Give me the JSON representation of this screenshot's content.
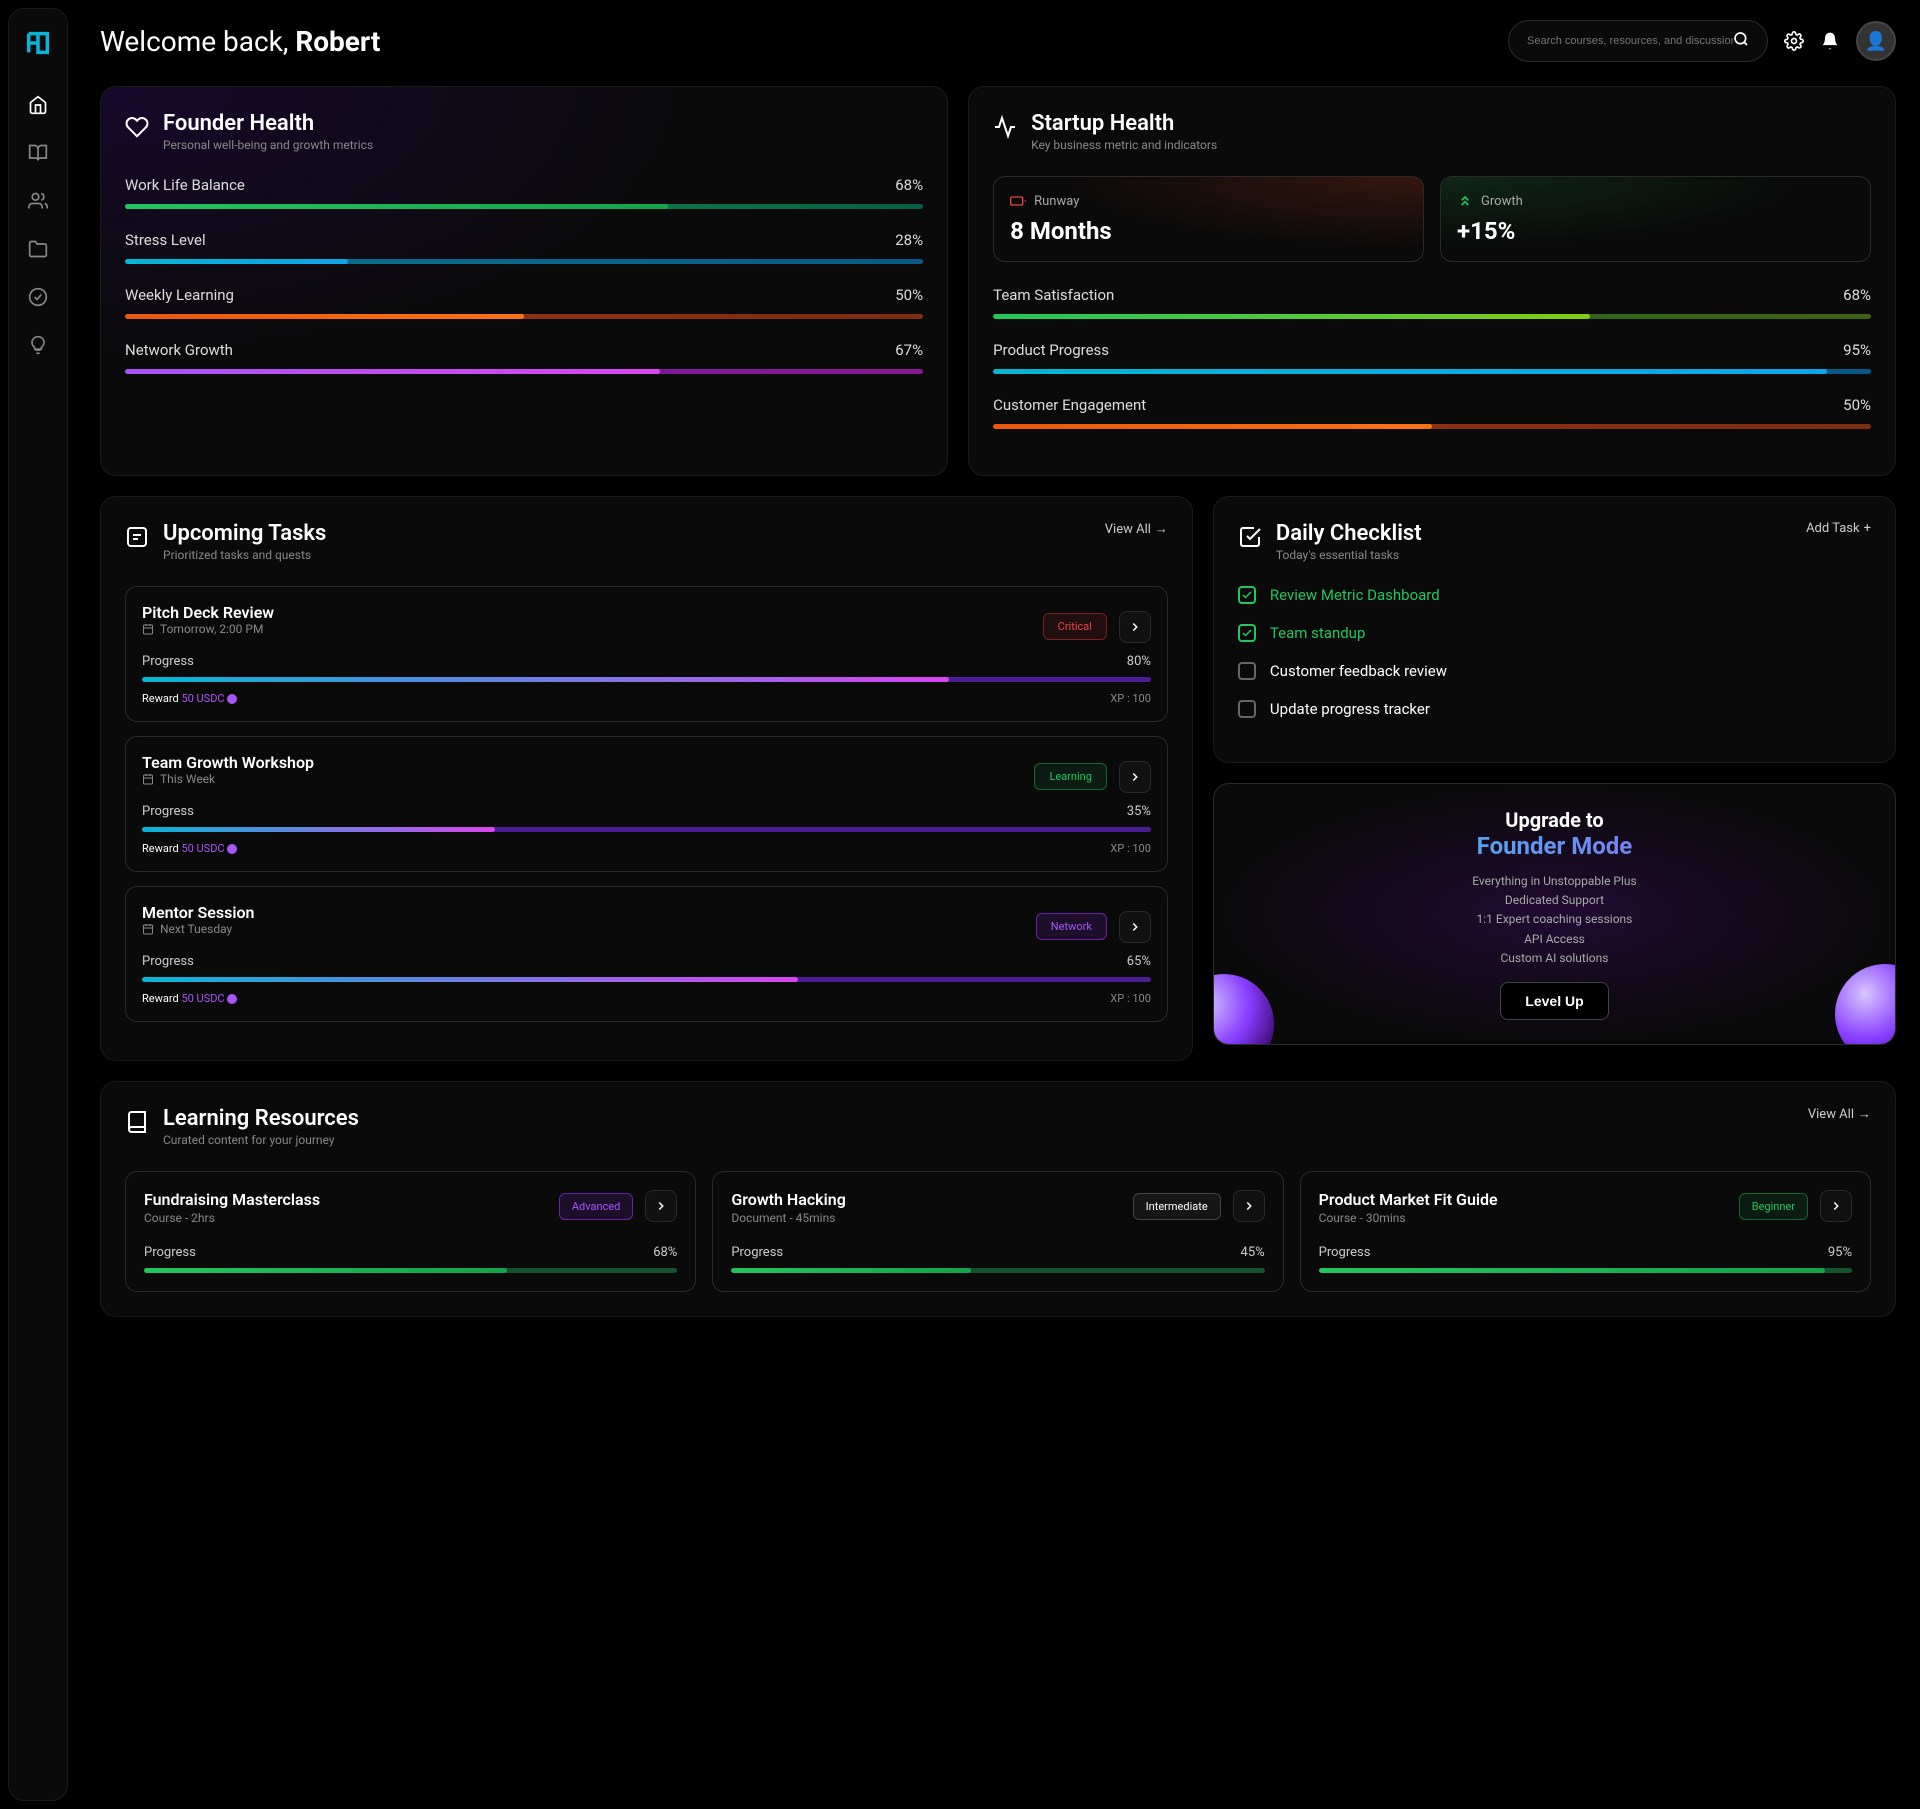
{
  "header": {
    "welcome_prefix": "Welcome back, ",
    "user_name": "Robert",
    "search_placeholder": "Search courses, resources, and discussions..."
  },
  "founder_health": {
    "title": "Founder Health",
    "subtitle": "Personal well-being and growth metrics",
    "metrics": [
      {
        "label": "Work Life Balance",
        "value": "68%",
        "pct": 68,
        "gradient": "linear-gradient(90deg, #22c55e 0%, #16a34a 100%)",
        "track_gradient": "linear-gradient(90deg, #16a34a 0%, #065f46 100%)"
      },
      {
        "label": "Stress Level",
        "value": "28%",
        "pct": 28,
        "gradient": "linear-gradient(90deg, #06b6d4 0%, #0ea5e9 100%)",
        "track_gradient": "linear-gradient(90deg, #0e7490 0%, #075985 100%)"
      },
      {
        "label": "Weekly Learning",
        "value": "50%",
        "pct": 50,
        "gradient": "linear-gradient(90deg, #ea580c 0%, #f97316 100%)",
        "track_gradient": "linear-gradient(90deg, #9a3412 0%, #7c2d12 100%)"
      },
      {
        "label": "Network Growth",
        "value": "67%",
        "pct": 67,
        "gradient": "linear-gradient(90deg, #a855f7 0%, #d946ef 100%)",
        "track_gradient": "linear-gradient(90deg, #6b21a8 0%, #86198f 100%)"
      }
    ]
  },
  "startup_health": {
    "title": "Startup Health",
    "subtitle": "Key business metric and indicators",
    "runway_label": "Runway",
    "runway_value": "8 Months",
    "growth_label": "Growth",
    "growth_value": "+15%",
    "metrics": [
      {
        "label": "Team Satisfaction",
        "value": "68%",
        "pct": 68,
        "gradient": "linear-gradient(90deg, #22c55e 0%, #84cc16 100%)",
        "track_gradient": "linear-gradient(90deg, #166534 0%, #3f6212 100%)"
      },
      {
        "label": "Product Progress",
        "value": "95%",
        "pct": 95,
        "gradient": "linear-gradient(90deg, #06b6d4 0%, #0ea5e9 100%)",
        "track_gradient": "linear-gradient(90deg, #0e7490 0%, #075985 100%)"
      },
      {
        "label": "Customer Engagement",
        "value": "50%",
        "pct": 50,
        "gradient": "linear-gradient(90deg, #ea580c 0%, #f97316 100%)",
        "track_gradient": "linear-gradient(90deg, #9a3412 0%, #7c2d12 100%)"
      }
    ]
  },
  "tasks": {
    "title": "Upcoming Tasks",
    "subtitle": "Prioritized tasks and quests",
    "view_all": "View All",
    "progress_label": "Progress",
    "reward_label": "Reward",
    "reward_value": "50 USDC",
    "xp_label": "XP : 100",
    "items": [
      {
        "title": "Pitch Deck Review",
        "time": "Tomorrow, 2:00 PM",
        "tag": "Critical",
        "tag_class": "critical",
        "pct": 80,
        "pct_label": "80%"
      },
      {
        "title": "Team Growth Workshop",
        "time": "This Week",
        "tag": "Learning",
        "tag_class": "learning",
        "pct": 35,
        "pct_label": "35%"
      },
      {
        "title": "Mentor Session",
        "time": "Next Tuesday",
        "tag": "Network",
        "tag_class": "network",
        "pct": 65,
        "pct_label": "65%"
      }
    ]
  },
  "checklist": {
    "title": "Daily Checklist",
    "subtitle": "Today's essential tasks",
    "add_task": "Add Task",
    "items": [
      {
        "label": "Review Metric Dashboard",
        "done": true
      },
      {
        "label": "Team standup",
        "done": true
      },
      {
        "label": "Customer feedback review",
        "done": false
      },
      {
        "label": "Update progress tracker",
        "done": false
      }
    ]
  },
  "upgrade": {
    "title": "Upgrade to",
    "mode": "Founder Mode",
    "features": [
      "Everything in Unstoppable Plus",
      "Dedicated Support",
      "1:1 Expert coaching sessions",
      "API Access",
      "Custom AI solutions"
    ],
    "button": "Level Up"
  },
  "resources": {
    "title": "Learning Resources",
    "subtitle": "Curated content for your journey",
    "view_all": "View All",
    "progress_label": "Progress",
    "items": [
      {
        "title": "Fundraising Masterclass",
        "meta": "Course - 2hrs",
        "tag": "Advanced",
        "tag_class": "advanced",
        "pct": 68,
        "pct_label": "68%"
      },
      {
        "title": "Growth Hacking",
        "meta": "Document - 45mins",
        "tag": "Intermediate",
        "tag_class": "intermediate",
        "pct": 45,
        "pct_label": "45%"
      },
      {
        "title": "Product Market Fit Guide",
        "meta": "Course - 30mins",
        "tag": "Beginner",
        "tag_class": "beginner",
        "pct": 95,
        "pct_label": "95%"
      }
    ]
  },
  "colors": {
    "task_progress_gradient": "linear-gradient(90deg, #06b6d4 0%, #d946ef 100%)",
    "task_progress_track": "#4c1d95",
    "resource_progress_gradient": "linear-gradient(90deg, #22c55e 0%, #16a34a 100%)",
    "resource_progress_track": "#14532d"
  }
}
